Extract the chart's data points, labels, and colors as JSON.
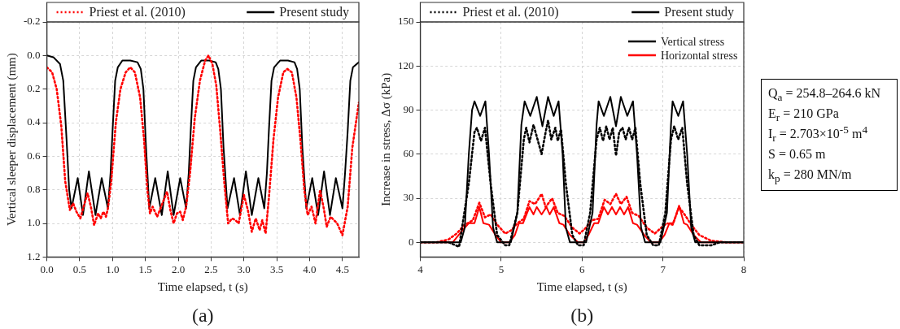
{
  "chart_data": [
    {
      "type": "line",
      "xlabel": "Time elapsed, t (s)",
      "ylabel": "Vertical sleeper displacement (mm)",
      "annotations": [
        "(a)"
      ],
      "xlim": [
        0,
        4.75
      ],
      "xticks": [
        {
          "value": 0,
          "label": "0.0"
        },
        {
          "value": 0.5,
          "label": "0.5"
        },
        {
          "value": 1,
          "label": "1.0"
        },
        {
          "value": 1.5,
          "label": "1.5"
        },
        {
          "value": 2,
          "label": "2.0"
        },
        {
          "value": 2.5,
          "label": "2.5"
        },
        {
          "value": 3,
          "label": "3.0"
        },
        {
          "value": 3.5,
          "label": "3.5"
        },
        {
          "value": 4,
          "label": "4.0"
        },
        {
          "value": 4.5,
          "label": "4.5"
        }
      ],
      "ylim": [
        1.2,
        -0.2
      ],
      "yticks": [
        {
          "value": -0.2,
          "label": "-0.2"
        },
        {
          "value": 0,
          "label": "0.0"
        },
        {
          "value": 0.2,
          "label": "0.2"
        },
        {
          "value": 0.4,
          "label": "0.4"
        },
        {
          "value": 0.6,
          "label": "0.6"
        },
        {
          "value": 0.8,
          "label": "0.8"
        },
        {
          "value": 1,
          "label": "1.0"
        },
        {
          "value": 1.2,
          "label": "1.2"
        }
      ],
      "grid": true,
      "legend": "top",
      "series": [
        {
          "name": "Priest et al. (2010)",
          "color": "#ff0000",
          "line_style": "dotted",
          "x": [
            0,
            0.08,
            0.15,
            0.22,
            0.28,
            0.35,
            0.4,
            0.45,
            0.51,
            0.56,
            0.62,
            0.67,
            0.72,
            0.78,
            0.82,
            0.86,
            0.9,
            0.93,
            0.98,
            1.05,
            1.12,
            1.2,
            1.27,
            1.34,
            1.42,
            1.48,
            1.53,
            1.57,
            1.61,
            1.68,
            1.76,
            1.83,
            1.88,
            1.93,
            1.98,
            2.03,
            2.07,
            2.12,
            2.18,
            2.25,
            2.33,
            2.41,
            2.46,
            2.52,
            2.58,
            2.64,
            2.7,
            2.76,
            2.82,
            2.87,
            2.92,
            3.0,
            3.06,
            3.12,
            3.18,
            3.24,
            3.28,
            3.33,
            3.38,
            3.45,
            3.52,
            3.6,
            3.66,
            3.73,
            3.8,
            3.86,
            3.92,
            3.97,
            4.03,
            4.09,
            4.16,
            4.22,
            4.26,
            4.32,
            4.37,
            4.42,
            4.5,
            4.58,
            4.65,
            4.75
          ],
          "values": [
            0.07,
            0.1,
            0.2,
            0.42,
            0.75,
            0.92,
            0.88,
            0.93,
            0.97,
            0.9,
            0.82,
            0.9,
            1.01,
            0.94,
            0.97,
            0.93,
            0.96,
            0.91,
            0.75,
            0.4,
            0.2,
            0.1,
            0.07,
            0.1,
            0.25,
            0.5,
            0.8,
            0.94,
            0.9,
            0.96,
            0.88,
            0.81,
            0.92,
            1.0,
            0.94,
            0.93,
            0.98,
            0.9,
            0.7,
            0.38,
            0.15,
            0.03,
            0.0,
            0.05,
            0.18,
            0.45,
            0.75,
            1.0,
            0.97,
            0.98,
            1.0,
            0.83,
            0.92,
            1.05,
            0.97,
            1.04,
            0.98,
            1.06,
            0.85,
            0.5,
            0.25,
            0.1,
            0.08,
            0.1,
            0.25,
            0.5,
            0.8,
            0.95,
            0.9,
            1.0,
            0.8,
            0.92,
            1.02,
            0.96,
            0.98,
            1.0,
            1.07,
            0.9,
            0.55,
            0.28
          ]
        },
        {
          "name": "Present study",
          "color": "#000000",
          "line_style": "solid",
          "x": [
            0,
            0.1,
            0.2,
            0.25,
            0.3,
            0.34,
            0.375,
            0.47,
            0.55,
            0.64,
            0.74,
            0.835,
            0.93,
            0.97,
            1.0,
            1.04,
            1.08,
            1.15,
            1.27,
            1.38,
            1.43,
            1.47,
            1.51,
            1.56,
            1.65,
            1.75,
            1.84,
            1.93,
            2.03,
            2.12,
            2.16,
            2.19,
            2.23,
            2.27,
            2.35,
            2.47,
            2.57,
            2.61,
            2.65,
            2.69,
            2.75,
            2.85,
            2.94,
            3.03,
            3.12,
            3.22,
            3.31,
            3.35,
            3.38,
            3.42,
            3.46,
            3.55,
            3.67,
            3.77,
            3.81,
            3.85,
            3.89,
            3.95,
            4.04,
            4.13,
            4.22,
            4.31,
            4.4,
            4.5,
            4.54,
            4.58,
            4.62,
            4.66,
            4.75
          ],
          "values": [
            0,
            0.01,
            0.05,
            0.15,
            0.5,
            0.8,
            0.91,
            0.73,
            0.95,
            0.69,
            0.95,
            0.73,
            0.91,
            0.7,
            0.45,
            0.15,
            0.07,
            0.03,
            0.03,
            0.04,
            0.08,
            0.2,
            0.55,
            0.91,
            0.73,
            0.95,
            0.69,
            0.95,
            0.73,
            0.91,
            0.7,
            0.45,
            0.15,
            0.07,
            0.03,
            0.03,
            0.04,
            0.08,
            0.2,
            0.55,
            0.91,
            0.73,
            0.95,
            0.69,
            0.95,
            0.73,
            0.91,
            0.7,
            0.45,
            0.15,
            0.07,
            0.03,
            0.03,
            0.04,
            0.08,
            0.2,
            0.55,
            0.91,
            0.73,
            0.95,
            0.69,
            0.95,
            0.73,
            0.91,
            0.7,
            0.45,
            0.15,
            0.07,
            0.04
          ]
        }
      ]
    },
    {
      "type": "line",
      "xlabel": "Time elapsed, t (s)",
      "ylabel": "Increase in stress, Δσ (kPa)",
      "annotations": [
        "Vertical stress",
        "(b)"
      ],
      "xlim": [
        4,
        8
      ],
      "xticks": [
        4,
        5,
        6,
        7,
        8
      ],
      "ylim": [
        -10,
        150
      ],
      "yticks": [
        0,
        30,
        60,
        90,
        120,
        150
      ],
      "grid": true,
      "legend": "top",
      "series": [
        {
          "name": "Priest et al. (2010)",
          "color": "#000000",
          "line_style": "dotted",
          "x": [
            4,
            4.35,
            4.48,
            4.6,
            4.67,
            4.7,
            4.75,
            4.8,
            4.87,
            4.95,
            5.05,
            5.1,
            5.2,
            5.28,
            5.31,
            5.35,
            5.4,
            5.45,
            5.5,
            5.55,
            5.58,
            5.62,
            5.67,
            5.7,
            5.74,
            5.8,
            5.88,
            5.95,
            6.02,
            6.1,
            6.18,
            6.22,
            6.26,
            6.3,
            6.34,
            6.38,
            6.42,
            6.46,
            6.5,
            6.54,
            6.58,
            6.62,
            6.66,
            6.72,
            6.8,
            6.88,
            6.95,
            7.03,
            7.1,
            7.14,
            7.19,
            7.24,
            7.3,
            7.38,
            7.45,
            7.6,
            7.7,
            8
          ],
          "values": [
            0,
            0,
            -3,
            40,
            75,
            78,
            69,
            78,
            40,
            5,
            -2,
            -2,
            20,
            70,
            78,
            68,
            80,
            70,
            60,
            75,
            83,
            70,
            78,
            69,
            77,
            40,
            5,
            -2,
            -2,
            20,
            70,
            78,
            69,
            79,
            70,
            78,
            59,
            75,
            78,
            70,
            78,
            70,
            78,
            40,
            5,
            -2,
            -2,
            20,
            70,
            79,
            70,
            78,
            40,
            5,
            -2,
            -2,
            0,
            0
          ]
        },
        {
          "name": "Present study",
          "color": "#000000",
          "line_style": "solid",
          "x": [
            4,
            4.5,
            4.55,
            4.6,
            4.64,
            4.67,
            4.74,
            4.805,
            4.85,
            4.9,
            4.95,
            5.12,
            5.2,
            5.25,
            5.29,
            5.36,
            5.44,
            5.51,
            5.58,
            5.65,
            5.71,
            5.76,
            5.8,
            5.85,
            6.05,
            6.13,
            6.18,
            6.205,
            6.27,
            6.35,
            6.42,
            6.48,
            6.56,
            6.63,
            6.68,
            6.73,
            6.78,
            6.97,
            7.05,
            7.1,
            7.12,
            7.19,
            7.25,
            7.3,
            7.35,
            7.4,
            8
          ],
          "values": [
            0,
            0,
            10,
            60,
            90,
            96,
            86,
            96,
            60,
            10,
            0,
            0,
            20,
            80,
            96,
            86,
            99,
            79,
            99,
            86,
            96,
            60,
            10,
            0,
            0,
            20,
            80,
            96,
            86,
            99,
            79,
            99,
            86,
            96,
            60,
            10,
            0,
            0,
            20,
            80,
            96,
            86,
            96,
            60,
            10,
            0,
            0
          ]
        },
        {
          "color": "#ff0000",
          "line_style": "dotted",
          "x": [
            4,
            4.2,
            4.35,
            4.45,
            4.55,
            4.65,
            4.73,
            4.8,
            4.87,
            4.95,
            5.05,
            5.12,
            5.2,
            5.28,
            5.35,
            5.42,
            5.5,
            5.55,
            5.63,
            5.7,
            5.78,
            5.88,
            5.97,
            6.05,
            6.12,
            6.2,
            6.28,
            6.35,
            6.42,
            6.48,
            6.55,
            6.62,
            6.7,
            6.8,
            6.9,
            6.98,
            7.05,
            7.12,
            7.2,
            7.28,
            7.35,
            7.45,
            7.6,
            7.8,
            8
          ],
          "values": [
            0,
            0,
            2,
            6,
            12,
            15,
            27,
            17,
            19,
            12,
            6,
            8,
            13,
            16,
            28,
            26,
            33,
            24,
            30,
            20,
            18,
            10,
            6,
            10,
            15,
            16,
            29,
            26,
            33,
            26,
            31,
            20,
            18,
            10,
            6,
            10,
            13,
            12,
            24,
            18,
            12,
            5,
            1,
            0,
            0
          ]
        },
        {
          "name": "Horizontal stress",
          "color": "#ff0000",
          "line_style": "solid",
          "x": [
            4,
            4.4,
            4.55,
            4.6,
            4.67,
            4.73,
            4.78,
            4.85,
            4.93,
            5.0,
            5.1,
            5.17,
            5.22,
            5.27,
            5.35,
            5.4,
            5.44,
            5.5,
            5.56,
            5.6,
            5.65,
            5.72,
            5.77,
            5.85,
            5.95,
            6.02,
            6.08,
            6.15,
            6.2,
            6.27,
            6.32,
            6.37,
            6.42,
            6.47,
            6.52,
            6.57,
            6.63,
            6.68,
            6.77,
            6.85,
            6.95,
            7.02,
            7.08,
            7.13,
            7.2,
            7.26,
            7.3,
            7.38,
            7.47,
            8
          ],
          "values": [
            0,
            0,
            10,
            13,
            13,
            24,
            13,
            12,
            5,
            0,
            0,
            5,
            13,
            13,
            24,
            19,
            24,
            19,
            24,
            19,
            24,
            13,
            12,
            5,
            0,
            0,
            5,
            13,
            13,
            24,
            19,
            24,
            19,
            24,
            19,
            24,
            13,
            12,
            5,
            0,
            0,
            5,
            13,
            13,
            25,
            13,
            12,
            5,
            0,
            0
          ]
        }
      ]
    },
    {
      "type": "other",
      "annotations": [
        "Q$_{a}$ = 254.8–264.6 kN",
        "E$_{r}$ = 210 GPa",
        "I$_{r}$ = 2.703×10$^{-5}$ m$^{4}$",
        "S = 0.65 m",
        "k$_{p}$ = 280 MN/m"
      ]
    }
  ]
}
